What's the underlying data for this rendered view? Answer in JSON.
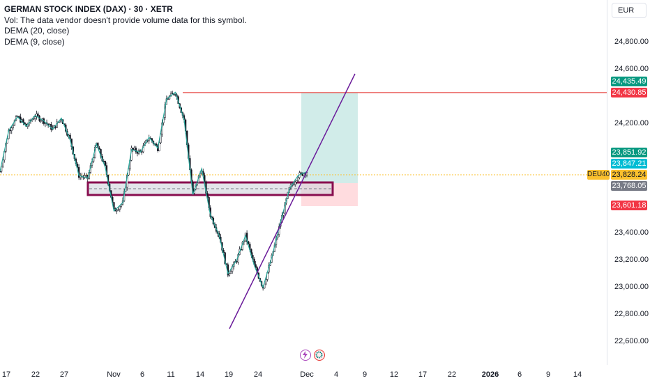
{
  "legend": {
    "title": "GERMAN STOCK INDEX (DAX) · 30 · XETR",
    "volume_note": "Vol: The data vendor doesn't provide volume data for this symbol.",
    "dema20": "DEMA (20, close)",
    "dema9": "DEMA (9, close)"
  },
  "currency": "EUR",
  "symbol_tag": "DEU40",
  "price_axis_ticks": [
    "24,800.00",
    "24,600.00",
    "24,200.00",
    "23,400.00",
    "23,200.00",
    "23,000.00",
    "22,800.00",
    "22,600.00"
  ],
  "price_tags": {
    "target": "24,435.49",
    "resistance": "24,430.85",
    "dema_a": "23,851.92",
    "dema_b": "23,847.21",
    "last": "23,828.24",
    "entry": "23,768.05",
    "stop": "23,601.18"
  },
  "time_axis": [
    "17",
    "22",
    "27",
    "Nov",
    "6",
    "11",
    "14",
    "19",
    "24",
    "Dec",
    "4",
    "9",
    "12",
    "17",
    "22",
    "2026",
    "6",
    "9",
    "14"
  ],
  "colors": {
    "candles": "#131722",
    "dema": "#26a69a",
    "resistance_line": "#e53935",
    "trendline": "#6a1b9a",
    "zone_border": "#880e4f",
    "zone_fill": "#d1d4dc",
    "target_fill": "#b2dfdb",
    "stop_fill": "#ffcdd2",
    "tag_green": "#089981",
    "tag_red": "#f23645",
    "tag_cyan": "#00bcd4",
    "tag_gray": "#787b86",
    "tag_yellow": "#fbc02d"
  },
  "chart_data": {
    "type": "candlestick",
    "y_axis_range": [
      22500,
      24900
    ],
    "series_close_approx": [
      23850,
      24150,
      24250,
      24180,
      24260,
      24220,
      24160,
      24240,
      24080,
      23820,
      23800,
      24050,
      23880,
      23560,
      23620,
      24010,
      23990,
      24100,
      24020,
      24380,
      24430,
      24230,
      23680,
      23870,
      23530,
      23380,
      23100,
      23200,
      23380,
      23160,
      23000,
      23220,
      23480,
      23720,
      23820,
      23848
    ],
    "resistance": 24430.85,
    "support_zone": [
      23750,
      23700
    ],
    "position_entry": 23768.05,
    "position_target": 24435.49,
    "position_stop": 23601.18,
    "trendline": [
      [
        22690,
        24580
      ]
    ]
  },
  "icons": [
    "lightning-icon",
    "replay-icon"
  ]
}
